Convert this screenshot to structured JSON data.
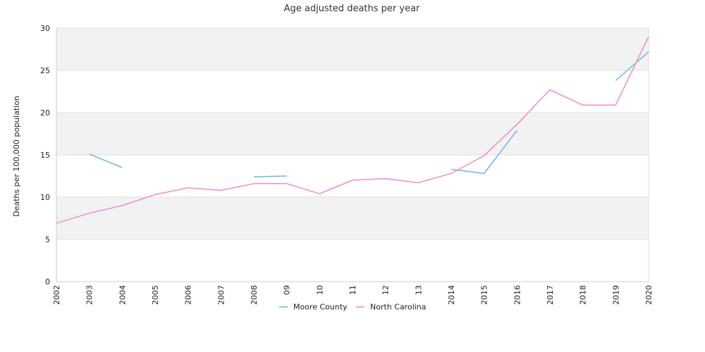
{
  "chart_data": {
    "type": "line",
    "title": "Age adjusted deaths per year",
    "ylabel": "Deaths per 100,000 population",
    "xlabel": "",
    "x": [
      "2002",
      "2003",
      "2004",
      "2005",
      "2006",
      "2007",
      "2008",
      "09",
      "10",
      "11",
      "12",
      "13",
      "2014",
      "2015",
      "2016",
      "2017",
      "2018",
      "2019",
      "2020"
    ],
    "ylim": [
      0,
      30
    ],
    "yticks": [
      0,
      5,
      10,
      15,
      20,
      25,
      30
    ],
    "grid": true,
    "legend_position": "bottom",
    "series": [
      {
        "name": "Moore County",
        "color": "#6cb4f0",
        "values": [
          null,
          15.1,
          13.5,
          null,
          null,
          null,
          12.4,
          12.5,
          null,
          null,
          null,
          null,
          13.3,
          12.8,
          17.9,
          null,
          null,
          23.8,
          27.2
        ]
      },
      {
        "name": "North Carolina",
        "color": "#f28cc4",
        "values": [
          6.9,
          8.1,
          9.0,
          10.3,
          11.1,
          10.8,
          11.6,
          11.6,
          10.4,
          12.0,
          12.2,
          11.7,
          12.8,
          14.9,
          18.6,
          22.7,
          20.9,
          20.9,
          29.0
        ]
      }
    ]
  }
}
